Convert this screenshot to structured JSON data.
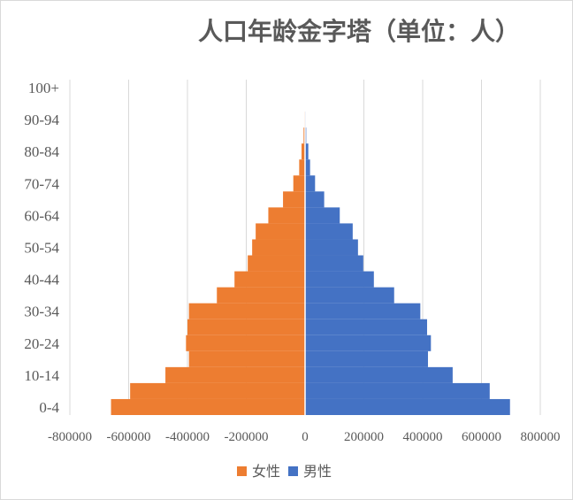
{
  "chart_data": {
    "type": "bar",
    "orientation": "horizontal",
    "title": "人口年龄金字塔（单位：人）",
    "categories": [
      "0-4",
      "5-9",
      "10-14",
      "15-19",
      "20-24",
      "25-29",
      "30-34",
      "35-39",
      "40-44",
      "45-49",
      "50-54",
      "55-59",
      "60-64",
      "65-69",
      "70-74",
      "75-79",
      "80-84",
      "85-89",
      "90-94",
      "95-99",
      "100+"
    ],
    "y_tick_labels": [
      "0-4",
      "10-14",
      "20-24",
      "30-34",
      "40-44",
      "50-54",
      "60-64",
      "70-74",
      "80-84",
      "90-94",
      "100+"
    ],
    "series": [
      {
        "name": "女性",
        "color": "#ED7D31",
        "values": [
          -660000,
          -595000,
          -475000,
          -395000,
          -405000,
          -400000,
          -395000,
          -300000,
          -240000,
          -195000,
          -180000,
          -168000,
          -125000,
          -75000,
          -40000,
          -20000,
          -12000,
          -5000,
          -2000,
          -500,
          0
        ]
      },
      {
        "name": "男性",
        "color": "#4472C4",
        "values": [
          697000,
          628000,
          502000,
          418000,
          428000,
          415000,
          392000,
          303000,
          234000,
          198000,
          180000,
          162000,
          118000,
          65000,
          34000,
          17000,
          11000,
          4000,
          2000,
          300,
          0
        ]
      }
    ],
    "xlim": [
      -800000,
      800000
    ],
    "x_ticks": [
      -800000,
      -600000,
      -400000,
      -200000,
      0,
      200000,
      400000,
      600000,
      800000
    ],
    "x_tick_labels": [
      "-800000",
      "-600000",
      "-400000",
      "-200000",
      "0",
      "200000",
      "400000",
      "600000",
      "800000"
    ],
    "grid": true,
    "legend_position": "bottom"
  }
}
